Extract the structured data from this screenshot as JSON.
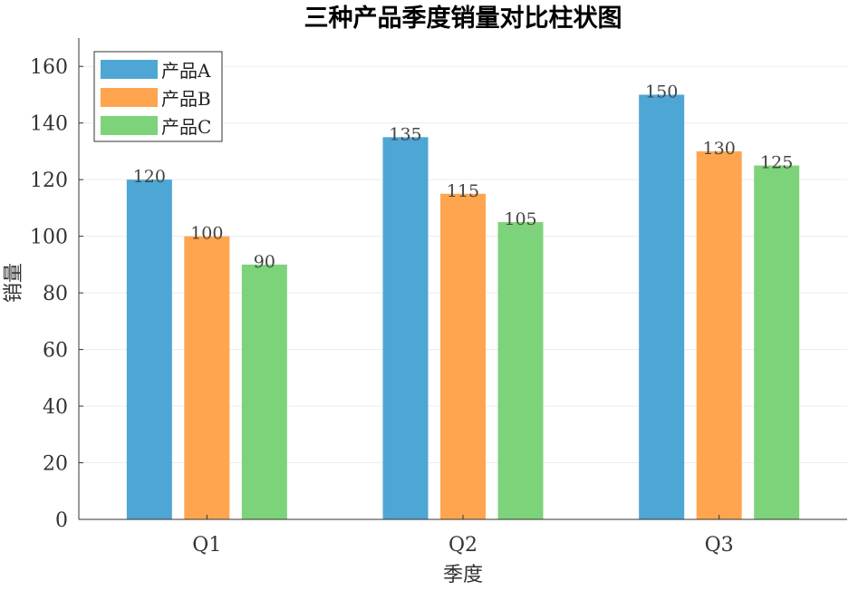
{
  "chart_data": {
    "type": "bar",
    "title": "三种产品季度销量对比柱状图",
    "xlabel": "季度",
    "ylabel": "销量",
    "categories": [
      "Q1",
      "Q2",
      "Q3"
    ],
    "series": [
      {
        "name": "产品A",
        "values": [
          120,
          135,
          150
        ],
        "color": "#4EA6D4"
      },
      {
        "name": "产品B",
        "values": [
          100,
          115,
          130
        ],
        "color": "#FFA54F"
      },
      {
        "name": "产品C",
        "values": [
          90,
          105,
          125
        ],
        "color": "#7DD37A"
      }
    ],
    "ylim": [
      0,
      170
    ],
    "yticks": [
      0,
      20,
      40,
      60,
      80,
      100,
      120,
      140,
      160
    ],
    "grid": true,
    "legend_position": "top-left",
    "data_labels": true
  }
}
